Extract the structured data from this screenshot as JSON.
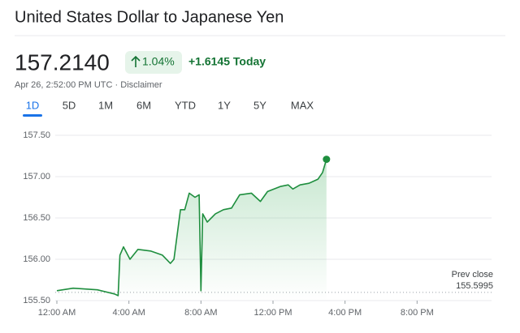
{
  "header": {
    "title": "United States Dollar to Japanese Yen",
    "price": "157.2140",
    "change_pct": "1.04%",
    "change": "+1.6145 Today",
    "timestamp": "Apr 26, 2:52:00 PM UTC",
    "separator": "·",
    "disclaimer": "Disclaimer"
  },
  "tabs": {
    "items": [
      "1D",
      "5D",
      "1M",
      "6M",
      "YTD",
      "1Y",
      "5Y",
      "MAX"
    ],
    "selected": 0
  },
  "chart_data": {
    "type": "line",
    "color": "#1e8e3e",
    "x": [
      0,
      0.9,
      2.25,
      3.2,
      3.4,
      3.5,
      3.7,
      4.06,
      4.5,
      5.2,
      5.86,
      6.3,
      6.5,
      6.86,
      7.1,
      7.35,
      7.67,
      7.9,
      8.0,
      8.1,
      8.35,
      8.8,
      9.25,
      9.7,
      10.15,
      10.8,
      11.3,
      11.7,
      12.4,
      12.85,
      13.1,
      13.5,
      14.0,
      14.5,
      14.75,
      14.97
    ],
    "values": [
      155.62,
      155.65,
      155.63,
      155.58,
      155.56,
      156.05,
      156.15,
      156.0,
      156.12,
      156.1,
      156.05,
      155.95,
      156.0,
      156.6,
      156.6,
      156.8,
      156.75,
      156.78,
      155.62,
      156.55,
      156.45,
      156.55,
      156.6,
      156.62,
      156.78,
      156.8,
      156.7,
      156.82,
      156.88,
      156.9,
      156.85,
      156.9,
      156.92,
      156.97,
      157.05,
      157.21
    ],
    "xlim": [
      0,
      24
    ],
    "xticks": [
      {
        "value": 0,
        "label": "12:00 AM"
      },
      {
        "value": 4,
        "label": "4:00 AM"
      },
      {
        "value": 8,
        "label": "8:00 AM"
      },
      {
        "value": 12,
        "label": "12:00 PM"
      },
      {
        "value": 16,
        "label": "4:00 PM"
      },
      {
        "value": 20,
        "label": "8:00 PM"
      }
    ],
    "ylim": [
      155.5,
      157.5
    ],
    "yticks": [
      {
        "value": 155.5,
        "label": "155.50"
      },
      {
        "value": 156,
        "label": "156.00"
      },
      {
        "value": 156.5,
        "label": "156.50"
      },
      {
        "value": 157,
        "label": "157.00"
      },
      {
        "value": 157.5,
        "label": "157.50"
      }
    ],
    "grid": true,
    "prev_close_label": "Prev close",
    "prev_close": 155.5995
  }
}
